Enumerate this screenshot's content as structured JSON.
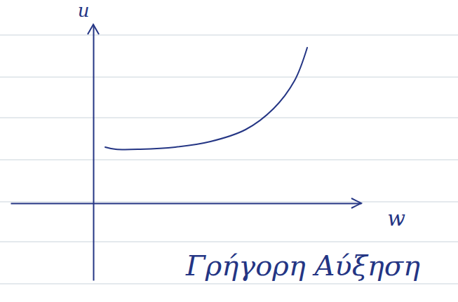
{
  "chart_data": {
    "type": "line",
    "x_label": "w",
    "y_label": "u",
    "annotation": "Γρήγορη Αύξηση",
    "x": [
      1.7,
      3.2,
      6.7,
      11.7,
      16.7,
      21.7,
      25.7,
      28.7,
      30.5
    ],
    "values": [
      8.0,
      7.7,
      7.7,
      8.0,
      8.8,
      10.5,
      13.5,
      17.5,
      22.2
    ],
    "xlim": [
      -11.8,
      38.2
    ],
    "ylim": [
      -11,
      25.5
    ],
    "tick_labels": false,
    "grid": false,
    "color": "#243584"
  }
}
